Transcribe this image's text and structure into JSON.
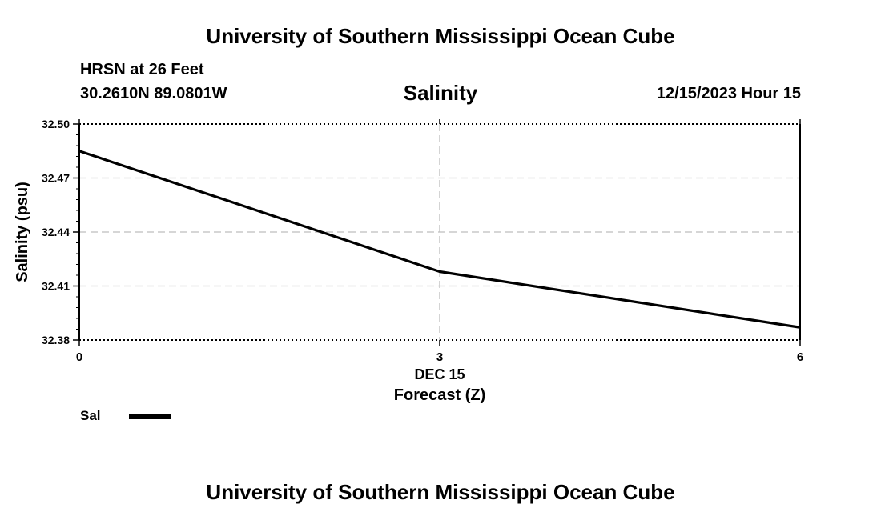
{
  "header": {
    "title": "University of Southern Mississippi Ocean Cube",
    "station": "HRSN at 26 Feet",
    "coordinates": "30.2610N  89.0801W",
    "datetime": "12/15/2023 Hour 15"
  },
  "footer": {
    "title": "University of Southern Mississippi Ocean Cube"
  },
  "chart_data": {
    "type": "line",
    "title": "Salinity",
    "xlabel": "Forecast (Z)",
    "ylabel": "Salinity (psu)",
    "x_date_label": "DEC 15",
    "xlim": [
      0,
      6
    ],
    "ylim": [
      32.38,
      32.5
    ],
    "x_ticks": [
      0,
      3,
      6
    ],
    "x_tick_labels": [
      "0",
      "3",
      "6"
    ],
    "y_ticks": [
      32.38,
      32.41,
      32.44,
      32.47,
      32.5
    ],
    "y_tick_labels": [
      "32.38",
      "32.41",
      "32.44",
      "32.47",
      "32.50"
    ],
    "grid": true,
    "series": [
      {
        "name": "Sal",
        "color": "#000000",
        "x": [
          0,
          3,
          6
        ],
        "values": [
          32.485,
          32.418,
          32.387
        ]
      }
    ],
    "legend": {
      "placement": "bottom-left",
      "entries": [
        "Sal"
      ]
    }
  }
}
